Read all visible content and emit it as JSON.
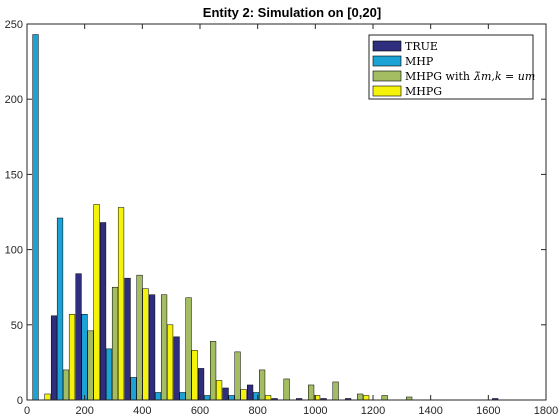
{
  "chart_data": {
    "type": "bar",
    "title": "Entity 2: Simulation on [0,20]",
    "xlabel": "",
    "ylabel": "",
    "xlim": [
      0,
      1800
    ],
    "ylim": [
      0,
      250
    ],
    "xticks": [
      0,
      200,
      400,
      600,
      800,
      1000,
      1200,
      1400,
      1600,
      1800
    ],
    "yticks": [
      0,
      50,
      100,
      150,
      200,
      250
    ],
    "x_tick_labels": [
      "0",
      "200",
      "400",
      "600",
      "800",
      "1000",
      "1200",
      "1400",
      "1600",
      "1800"
    ],
    "y_tick_labels": [
      "0",
      "50",
      "100",
      "150",
      "200",
      "250"
    ],
    "grid": false,
    "legend_position": "top-right",
    "bin_centers": [
      40,
      125,
      210,
      295,
      380,
      465,
      550,
      635,
      720,
      805,
      890,
      975,
      1060,
      1145,
      1230,
      1315,
      1400,
      1485,
      1570,
      1655
    ],
    "series": [
      {
        "name": "TRUE",
        "legend_label": "TRUE",
        "color": "#2e2d7e",
        "values": [
          0,
          56,
          84,
          118,
          81,
          70,
          42,
          21,
          8,
          10,
          1,
          1,
          1,
          1,
          0,
          0,
          0,
          0,
          0,
          1
        ]
      },
      {
        "name": "MHP",
        "legend_label": "MHP",
        "color": "#1aa3d4",
        "values": [
          243,
          121,
          57,
          34,
          15,
          5,
          5,
          3,
          3,
          5,
          0,
          0,
          0,
          0,
          0,
          0,
          0,
          0,
          0,
          0
        ]
      },
      {
        "name": "MHPG with λ̄_{m,k} = u_m",
        "legend_label": "MHPG with",
        "legend_math": "λ̄m,k = um",
        "color": "#a4bd62",
        "values": [
          0,
          20,
          46,
          75,
          83,
          70,
          68,
          39,
          32,
          20,
          14,
          10,
          12,
          4,
          3,
          2,
          0,
          0,
          0,
          0
        ]
      },
      {
        "name": "MHPG",
        "legend_label": "MHPG",
        "color": "#f5f20c",
        "values": [
          4,
          57,
          130,
          128,
          74,
          50,
          33,
          13,
          7,
          3,
          0,
          3,
          0,
          3,
          0,
          0,
          0,
          0,
          0,
          0
        ]
      }
    ]
  }
}
